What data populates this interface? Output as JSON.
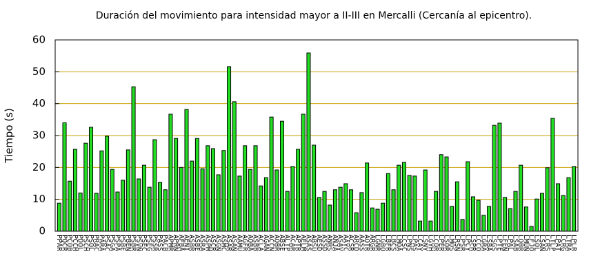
{
  "chart_data": {
    "type": "bar",
    "title": "Duración del movimiento para intensidad mayor a II-III en Mercalli (Cercanía al epicentro).",
    "y_label": "Tiempo (s)",
    "categories": [
      "PPAR",
      "PQCR",
      "PCOB",
      "PCCH",
      "PDOL",
      "PSCH",
      "PSOL",
      "PRAC",
      "PARA",
      "PSAC",
      "PSGA",
      "PSPA",
      "PSBE",
      "PBEN",
      "PSBR",
      "PSVN",
      "PSEC",
      "PSEG",
      "PSSR",
      "PASS",
      "PACB",
      "APMR",
      "APRN",
      "AFBA",
      "AENI",
      "ASBR",
      "ASBE",
      "ASRA",
      "ASPM",
      "ASCR",
      "ASGN",
      "ASMC",
      "ASAR",
      "ASAN",
      "AAMU",
      "AGFR",
      "AOBA",
      "ASBB",
      "ACLA",
      "AGAN",
      "ACCN",
      "AOBR",
      "ABSE",
      "ALTP",
      "ACAR",
      "APTR",
      "AELM",
      "ASAS",
      "ABSU",
      "AESD",
      "ASSD",
      "ANRS",
      "ANJA",
      "ASAV",
      "AAYC",
      "ACSR",
      "ARCD",
      "AASS",
      "AOTR",
      "ARGR",
      "LGNR",
      "LGBO",
      "LBFR",
      "LBCS",
      "LMOA",
      "LCSC",
      "LPNS",
      "LPAS",
      "LCAY",
      "LSNY",
      "LGYH",
      "LCOR",
      "LPER",
      "LSOR",
      "LMOS",
      "LRSN",
      "LPSR",
      "LPCY",
      "LSPR",
      "LCCO",
      "LGRA",
      "LSBA",
      "LSGS",
      "LPTE",
      "LFEN",
      "LPAL",
      "LSAB",
      "LOBR",
      "LMUN",
      "LFJO",
      "LSOL",
      "LSAN",
      "LCRS",
      "LTLP",
      "LPAT",
      "LCRG",
      "LTRA",
      "LPLR"
    ],
    "values": [
      8.8,
      34,
      15.7,
      25.7,
      12,
      27.6,
      32.6,
      11.9,
      25.2,
      29.8,
      19.4,
      12.3,
      16,
      25.5,
      45.3,
      16.4,
      20.7,
      13.8,
      28.7,
      15.3,
      13,
      36.7,
      29.1,
      20,
      38.2,
      22,
      29.1,
      19.6,
      26.8,
      25.9,
      17.7,
      25.3,
      51.6,
      40.6,
      17.3,
      26.8,
      19.4,
      26.8,
      14.2,
      16.8,
      35.8,
      19.2,
      34.5,
      12.5,
      20.3,
      25.7,
      36.7,
      55.9,
      27,
      10.6,
      12.5,
      8.2,
      13,
      13.8,
      14.9,
      13,
      5.8,
      12.1,
      21.4,
      7.3,
      6.9,
      8.8,
      18.1,
      13,
      20.7,
      21.6,
      17.5,
      17.3,
      3.2,
      19.2,
      3.2,
      12.5,
      24,
      23.3,
      7.8,
      15.5,
      3.7,
      21.8,
      10.8,
      9.7,
      5,
      7.8,
      33.2,
      33.9,
      10.6,
      7.1,
      12.5,
      20.7,
      7.6,
      1.5,
      10.1,
      11.9,
      19.9,
      35.4,
      14.9,
      11.2,
      16.8,
      20.3
    ],
    "color": "#22dd22",
    "ylim": [
      0,
      60
    ],
    "yticks": [
      0,
      10,
      20,
      30,
      40,
      50,
      60
    ],
    "grid": true,
    "grid_color": "#c8a000"
  }
}
